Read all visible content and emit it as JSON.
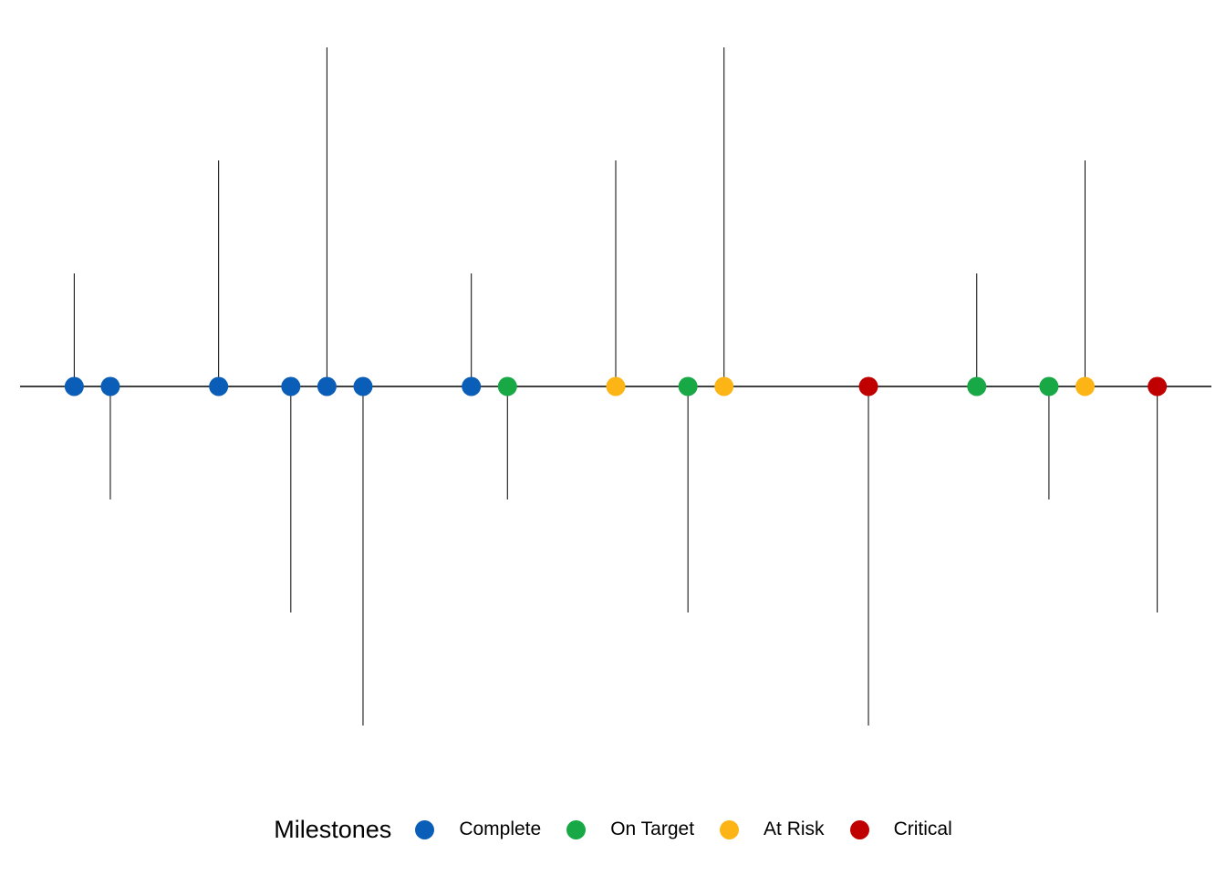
{
  "chart_data": {
    "type": "timeline",
    "legend_title": "Milestones",
    "legend_position": "bottom",
    "grid": false,
    "axes_visible": false,
    "status_colors": {
      "Complete": "#0A5EB7",
      "On Target": "#18A846",
      "At Risk": "#FDB515",
      "Critical": "#C00000"
    },
    "statuses": [
      "Complete",
      "On Target",
      "At Risk",
      "Critical"
    ],
    "xlim": [
      -1.5,
      31.5
    ],
    "ylim": [
      -3.5,
      3.5
    ],
    "milestones": [
      {
        "x": 0,
        "height": 1,
        "status": "Complete"
      },
      {
        "x": 1,
        "height": -1,
        "status": "Complete"
      },
      {
        "x": 4,
        "height": 2,
        "status": "Complete"
      },
      {
        "x": 6,
        "height": -2,
        "status": "Complete"
      },
      {
        "x": 7,
        "height": 3,
        "status": "Complete"
      },
      {
        "x": 8,
        "height": -3,
        "status": "Complete"
      },
      {
        "x": 11,
        "height": 1,
        "status": "Complete"
      },
      {
        "x": 12,
        "height": -1,
        "status": "On Target"
      },
      {
        "x": 15,
        "height": 2,
        "status": "At Risk"
      },
      {
        "x": 17,
        "height": -2,
        "status": "On Target"
      },
      {
        "x": 18,
        "height": 3,
        "status": "At Risk"
      },
      {
        "x": 22,
        "height": -3,
        "status": "Critical"
      },
      {
        "x": 25,
        "height": 1,
        "status": "On Target"
      },
      {
        "x": 27,
        "height": -1,
        "status": "On Target"
      },
      {
        "x": 28,
        "height": 2,
        "status": "At Risk"
      },
      {
        "x": 30,
        "height": -2,
        "status": "Critical"
      }
    ]
  }
}
